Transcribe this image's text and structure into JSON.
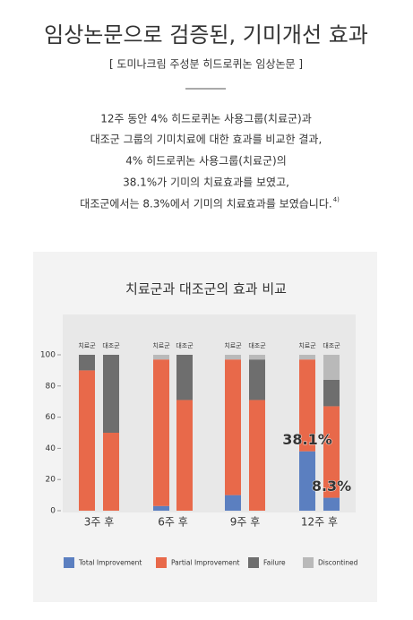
{
  "header": {
    "title": "임상논문으로 검증된, 기미개선 효과",
    "subtitle": "[ 도미나크림 주성분 히드로퀴논 임상논문 ]"
  },
  "body": {
    "lines": [
      "12주 동안 4% 히드로퀴논 사용그룹(치료군)과",
      "대조군 그룹의 기미치료에 대한 효과를 비교한 결과,",
      "4% 히드로퀴논 사용그룹(치료군)의",
      "38.1%가 기미의 치료효과를 보였고,",
      "대조군에서는  8.3%에서 기미의 치료효과를 보였습니다."
    ],
    "footnote_ref": "4)"
  },
  "chart_data": {
    "type": "stacked_bar",
    "title": "치료군과 대조군의 효과 비교",
    "groups": [
      "3주 후",
      "6주 후",
      "9주 후",
      "12주 후"
    ],
    "subgroups": [
      "치료군",
      "대조군"
    ],
    "ylim": [
      0,
      100
    ],
    "yticks": [
      0,
      20,
      40,
      60,
      80,
      100
    ],
    "series": [
      {
        "name": "Total Improvement",
        "color": "#5b7fc0",
        "values": [
          0,
          0,
          3,
          0,
          10,
          0,
          38.1,
          8.3
        ],
        "value_labels": [
          null,
          null,
          null,
          null,
          null,
          null,
          "38.1%",
          "8.3%"
        ]
      },
      {
        "name": "Partial Improvement",
        "color": "#e8694a",
        "values": [
          90,
          50,
          94,
          71,
          87,
          71,
          58.9,
          58.7
        ]
      },
      {
        "name": "Failure",
        "color": "#6e6e6e",
        "values": [
          10,
          50,
          0,
          29,
          0,
          26,
          0,
          17
        ]
      },
      {
        "name": "Discontined",
        "color": "#b9b9b9",
        "values": [
          0,
          0,
          3,
          0,
          3,
          3,
          3,
          16
        ]
      }
    ],
    "legend": "bottom"
  }
}
